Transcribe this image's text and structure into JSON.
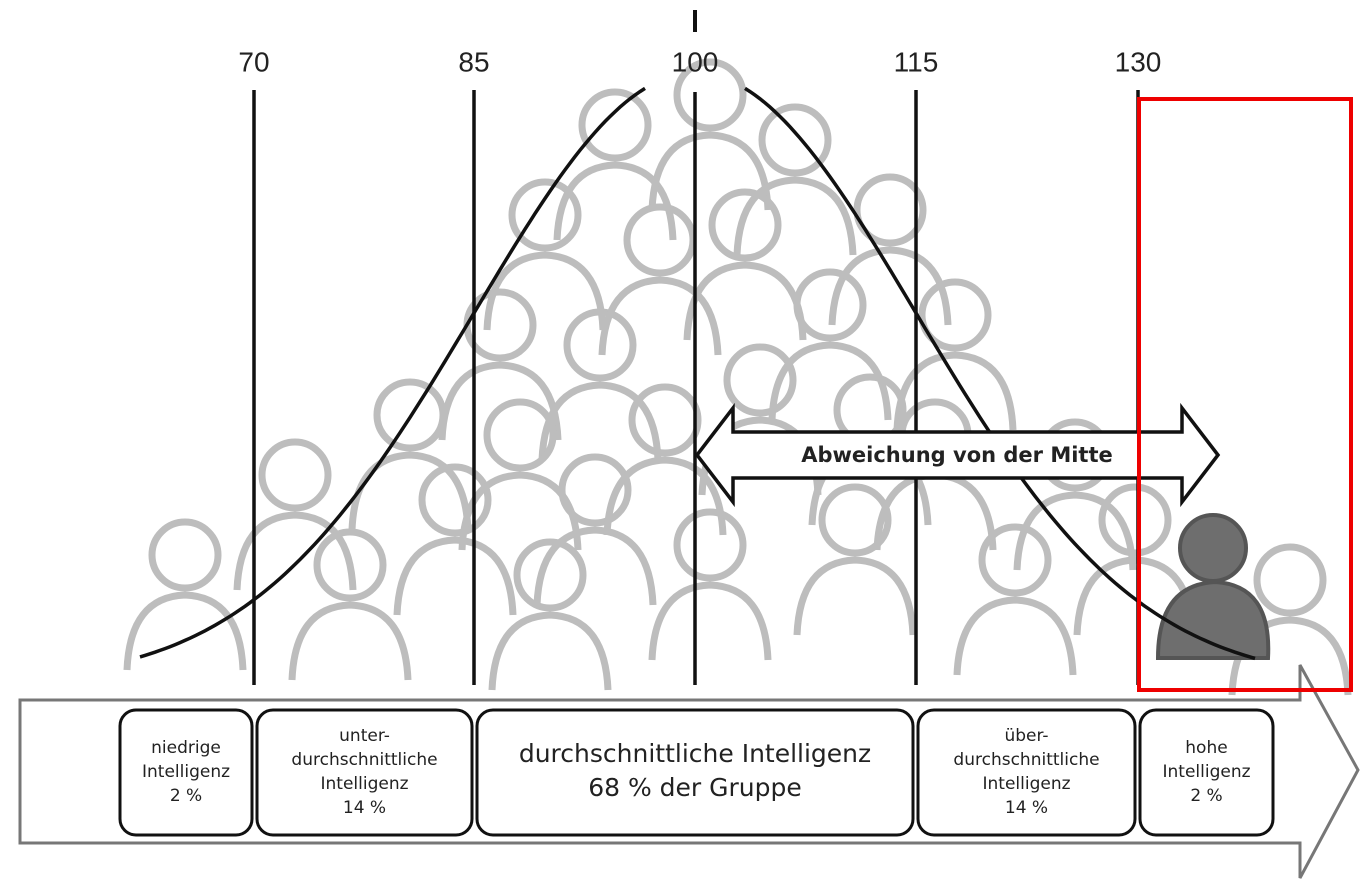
{
  "scale": {
    "ticks": [
      "70",
      "85",
      "100",
      "115",
      "130"
    ]
  },
  "arrow_label": "Abweichung von der Mitte",
  "categories": [
    {
      "lines": [
        "niedrige",
        "Intelligenz",
        "2 %"
      ]
    },
    {
      "lines": [
        "unter-",
        "durchschnittliche",
        "Intelligenz",
        "14 %"
      ]
    },
    {
      "lines": [
        "durchschnittliche Intelligenz",
        "68 % der Gruppe"
      ]
    },
    {
      "lines": [
        "über-",
        "durchschnittliche",
        "Intelligenz",
        "14 %"
      ]
    },
    {
      "lines": [
        "hohe",
        "Intelligenz",
        "2 %"
      ]
    }
  ]
}
